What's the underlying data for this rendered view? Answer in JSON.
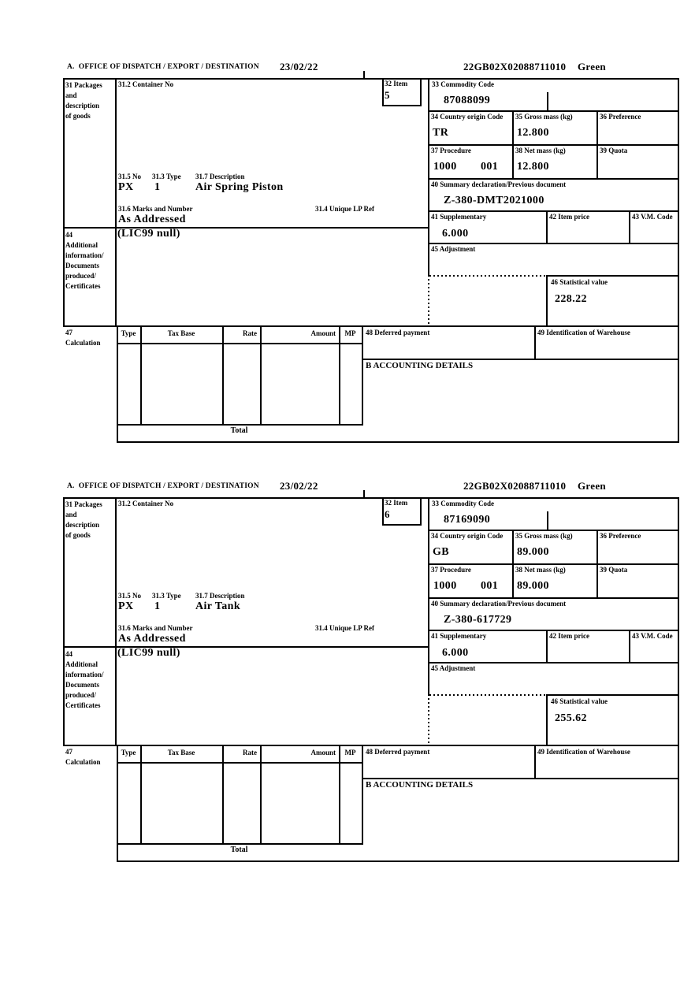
{
  "header": {
    "section": "A.  OFFICE OF DISPATCH / EXPORT / DESTINATION",
    "date": "23/02/22",
    "reference": "22GB02X02088711010",
    "routing": "Green"
  },
  "labels": {
    "box31_lines": [
      "31 Packages",
      "and",
      "description",
      "of goods"
    ],
    "container_no": "31.2 Container No",
    "item": "32 Item",
    "commodity_code": "33 Commodity Code",
    "country_origin": "34 Country origin Code",
    "gross_mass": "35 Gross mass (kg)",
    "preference": "36 Preference",
    "procedure": "37 Procedure",
    "net_mass": "38 Net mass (kg)",
    "quota": "39 Quota",
    "no_315": "31.5 No",
    "type_313": "31.3 Type",
    "description_317": "31.7 Description",
    "summary_declaration": "40 Summary declaration/Previous document",
    "marks_316": "31.6 Marks and Number",
    "unique_lp_314": "31.4 Unique LP Ref",
    "supplementary": "41 Supplementary",
    "item_price": "42 Item price",
    "vm_code": "43 V.M. Code",
    "box44_lines": [
      "44",
      "Additional",
      "information/",
      "Documents",
      "produced/",
      "Certificates"
    ],
    "adjustment": "45 Adjustment",
    "statistical_value": "46 Statistical value",
    "calc_no": "47",
    "calc_word": "Calculation",
    "calc_type": "Type",
    "calc_tax_base": "Tax Base",
    "calc_rate": "Rate",
    "calc_amount": "Amount",
    "calc_mp": "MP",
    "deferred_payment": "48 Deferred payment",
    "warehouse_id": "49 Identification of Warehouse",
    "accounting_details": "B ACCOUNTING DETAILS",
    "total": "Total"
  },
  "items": [
    {
      "item_no": "5",
      "commodity_code": "87088099",
      "country_origin": "TR",
      "gross_mass": "12.800",
      "procedure": "1000",
      "procedure_ext": "001",
      "net_mass": "12.800",
      "package_no": "PX",
      "package_type": "1",
      "goods_description": "Air Spring Piston",
      "previous_document": "Z-380-DMT2021000",
      "marks_and_number": "As Addressed",
      "supplementary_units": "6.000",
      "additional_information": "(LIC99 null)",
      "statistical_value": "228.22"
    },
    {
      "item_no": "6",
      "commodity_code": "87169090",
      "country_origin": "GB",
      "gross_mass": "89.000",
      "procedure": "1000",
      "procedure_ext": "001",
      "net_mass": "89.000",
      "package_no": "PX",
      "package_type": "1",
      "goods_description": "Air Tank",
      "previous_document": "Z-380-617729",
      "marks_and_number": "As Addressed",
      "supplementary_units": "6.000",
      "additional_information": "(LIC99 null)",
      "statistical_value": "255.62"
    }
  ]
}
